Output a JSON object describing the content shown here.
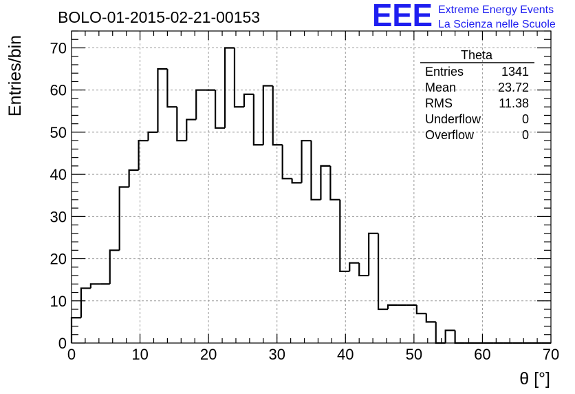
{
  "chart_data": {
    "type": "histogram",
    "title": "BOLO-01-2015-02-21-00153",
    "xlabel": "θ [°]",
    "ylabel": "Entries/bin",
    "xlim": [
      0,
      70
    ],
    "ylim": [
      0,
      74
    ],
    "xticks": [
      0,
      10,
      20,
      30,
      40,
      50,
      60,
      70
    ],
    "yticks": [
      0,
      10,
      20,
      30,
      40,
      50,
      60,
      70
    ],
    "grid": true,
    "bin_width": 1.4,
    "bin_edges_start": 0,
    "values": [
      6,
      13,
      14,
      14,
      22,
      37,
      41,
      48,
      50,
      65,
      56,
      48,
      53,
      60,
      60,
      51,
      70,
      56,
      59,
      47,
      61,
      47,
      39,
      38,
      48,
      34,
      42,
      34,
      17,
      19,
      16,
      26,
      8,
      9,
      9,
      9,
      7,
      5,
      0,
      3,
      0,
      0,
      0,
      0,
      0,
      0,
      0,
      0,
      0,
      0
    ],
    "stats_box": {
      "title": "Theta",
      "rows": [
        {
          "label": "Entries",
          "value": "1341"
        },
        {
          "label": "Mean",
          "value": "23.72"
        },
        {
          "label": "RMS",
          "value": "11.38"
        },
        {
          "label": "Underflow",
          "value": "0"
        },
        {
          "label": "Overflow",
          "value": "0"
        }
      ]
    }
  },
  "logo": {
    "mark": "EEE",
    "line1": "Extreme Energy Events",
    "line2": "La Scienza nelle Scuole",
    "color": "#1e1ef0"
  }
}
